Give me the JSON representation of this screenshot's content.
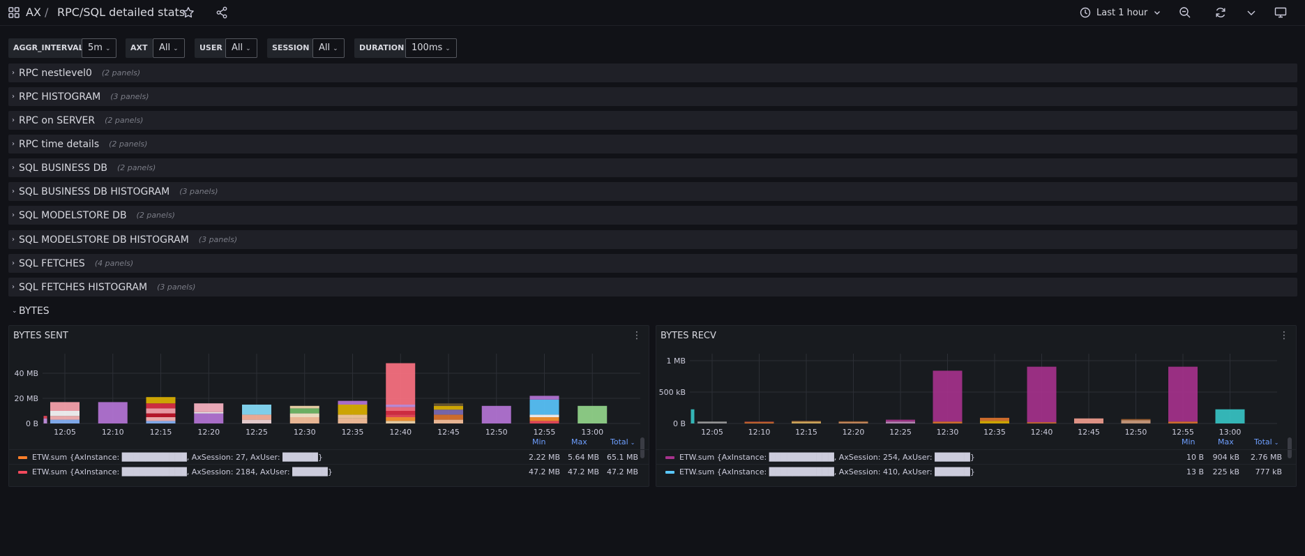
{
  "header": {
    "root": "AX",
    "separator": "/",
    "title": "RPC/SQL detailed stats",
    "time_range": "Last 1 hour"
  },
  "variables": [
    {
      "label": "AGGR_INTERVAL",
      "value": "5m"
    },
    {
      "label": "AXT",
      "value": "All"
    },
    {
      "label": "USER",
      "value": "All"
    },
    {
      "label": "SESSION",
      "value": "All"
    },
    {
      "label": "DURATION",
      "value": "100ms"
    }
  ],
  "rows": [
    {
      "title": "RPC nestlevel0",
      "count": "(2 panels)"
    },
    {
      "title": "RPC HISTOGRAM",
      "count": "(3 panels)"
    },
    {
      "title": "RPC on SERVER",
      "count": "(2 panels)"
    },
    {
      "title": "RPC time details",
      "count": "(2 panels)"
    },
    {
      "title": "SQL BUSINESS DB",
      "count": "(2 panels)"
    },
    {
      "title": "SQL BUSINESS DB HISTOGRAM",
      "count": "(3 panels)"
    },
    {
      "title": "SQL MODELSTORE DB",
      "count": "(2 panels)"
    },
    {
      "title": "SQL MODELSTORE DB HISTOGRAM",
      "count": "(3 panels)"
    },
    {
      "title": "SQL FETCHES",
      "count": "(4 panels)"
    },
    {
      "title": "SQL FETCHES HISTOGRAM",
      "count": "(3 panels)"
    }
  ],
  "open_row": {
    "title": "BYTES"
  },
  "legend_headers": {
    "min": "Min",
    "max": "Max",
    "total": "Total"
  },
  "colors": {
    "background": "#111217",
    "panel": "#181b1f",
    "row": "#1f2027",
    "accent_blue": "#6e9fff"
  },
  "panels": {
    "sent": {
      "title": "BYTES SENT",
      "legend": [
        {
          "color": "#ff7f2a",
          "name": "ETW.sum {AxInstance: ███████████, AxSession: 27, AxUser: ██████}",
          "min": "2.22 MB",
          "max": "5.64 MB",
          "total": "65.1 MB"
        },
        {
          "color": "#f2495c",
          "name": "ETW.sum {AxInstance: ███████████, AxSession: 2184, AxUser: ██████}",
          "min": "47.2 MB",
          "max": "47.2 MB",
          "total": "47.2 MB"
        }
      ]
    },
    "recv": {
      "title": "BYTES RECV",
      "legend": [
        {
          "color": "#a7328d",
          "name": "ETW.sum {AxInstance: ███████████, AxSession: 254, AxUser: ██████}",
          "min": "10 B",
          "max": "904 kB",
          "total": "2.76 MB"
        },
        {
          "color": "#5ac8ff",
          "name": "ETW.sum {AxInstance: ███████████, AxSession: 410, AxUser: ██████}",
          "min": "13 B",
          "max": "225 kB",
          "total": "777 kB"
        }
      ]
    }
  },
  "chart_data": [
    {
      "type": "bar",
      "title": "BYTES SENT",
      "y_ticks": [
        "0 B",
        "20 MB",
        "40 MB"
      ],
      "ylim": [
        0,
        50
      ],
      "x_ticks": [
        "12:05",
        "12:10",
        "12:15",
        "12:20",
        "12:25",
        "12:30",
        "12:35",
        "12:40",
        "12:45",
        "12:50",
        "12:55",
        "13:00"
      ],
      "grid": true,
      "stacks": [
        {
          "t": "12:01",
          "segments": [
            {
              "v": 4,
              "color": "#ca95e5"
            },
            {
              "v": 2,
              "color": "#f2495c"
            }
          ]
        },
        {
          "t": "12:05",
          "segments": [
            {
              "v": 3,
              "color": "#8ab8ff"
            },
            {
              "v": 3,
              "color": "#ffb8b8"
            },
            {
              "v": 4,
              "color": "#ffffff"
            },
            {
              "v": 7,
              "color": "#ffa6b0"
            }
          ]
        },
        {
          "t": "12:10",
          "segments": [
            {
              "v": 17,
              "color": "#b877d9"
            }
          ]
        },
        {
          "t": "12:15",
          "segments": [
            {
              "v": 2,
              "color": "#8ab8ff"
            },
            {
              "v": 3,
              "color": "#ffb8b8"
            },
            {
              "v": 3,
              "color": "#c4162a"
            },
            {
              "v": 4,
              "color": "#ffa6b0"
            },
            {
              "v": 4,
              "color": "#e02f44"
            },
            {
              "v": 5,
              "color": "#e0b400"
            }
          ]
        },
        {
          "t": "12:20",
          "segments": [
            {
              "v": 8,
              "color": "#b877d9"
            },
            {
              "v": 1,
              "color": "#ffffff"
            },
            {
              "v": 7,
              "color": "#ffb8c6"
            }
          ]
        },
        {
          "t": "12:25",
          "segments": [
            {
              "v": 3,
              "color": "#fadede"
            },
            {
              "v": 4,
              "color": "#ffb8a0"
            },
            {
              "v": 8,
              "color": "#8ae2ff"
            }
          ]
        },
        {
          "t": "12:30",
          "segments": [
            {
              "v": 5,
              "color": "#ffc6a0"
            },
            {
              "v": 3,
              "color": "#fff0d0"
            },
            {
              "v": 4,
              "color": "#73bf69"
            },
            {
              "v": 2,
              "color": "#fadeb0"
            }
          ]
        },
        {
          "t": "12:35",
          "segments": [
            {
              "v": 4,
              "color": "#ffc6a0"
            },
            {
              "v": 3,
              "color": "#ffd0a0"
            },
            {
              "v": 8,
              "color": "#e0b400"
            },
            {
              "v": 3,
              "color": "#b877d9"
            }
          ]
        },
        {
          "t": "12:40",
          "segments": [
            {
              "v": 2,
              "color": "#fadeb0"
            },
            {
              "v": 3,
              "color": "#ff9830"
            },
            {
              "v": 2,
              "color": "#f2495c"
            },
            {
              "v": 3,
              "color": "#e02f44"
            },
            {
              "v": 3,
              "color": "#ff7383"
            },
            {
              "v": 2,
              "color": "#ca95e5"
            },
            {
              "v": 33,
              "color": "#ff7383"
            }
          ]
        },
        {
          "t": "12:45",
          "segments": [
            {
              "v": 3,
              "color": "#ffc6a0"
            },
            {
              "v": 4,
              "color": "#e0752d"
            },
            {
              "v": 4,
              "color": "#806eb7"
            },
            {
              "v": 3,
              "color": "#e0b400"
            },
            {
              "v": 2,
              "color": "#6e5a30"
            }
          ]
        },
        {
          "t": "12:50",
          "segments": [
            {
              "v": 14,
              "color": "#b877d9"
            }
          ]
        },
        {
          "t": "12:55",
          "segments": [
            {
              "v": 2,
              "color": "#f2495c"
            },
            {
              "v": 3,
              "color": "#ff9830"
            },
            {
              "v": 2,
              "color": "#ffffff"
            },
            {
              "v": 12,
              "color": "#5ac8ff"
            },
            {
              "v": 3,
              "color": "#b877d9"
            }
          ]
        },
        {
          "t": "13:00",
          "segments": [
            {
              "v": 14,
              "color": "#96d98d"
            }
          ]
        }
      ]
    },
    {
      "type": "bar",
      "title": "BYTES RECV",
      "y_ticks": [
        "0 B",
        "500 kB",
        "1 MB"
      ],
      "ylim": [
        0,
        1000
      ],
      "x_ticks": [
        "12:05",
        "12:10",
        "12:15",
        "12:20",
        "12:25",
        "12:30",
        "12:35",
        "12:40",
        "12:45",
        "12:50",
        "12:55",
        "13:00"
      ],
      "grid": true,
      "stacks": [
        {
          "t": "12:01",
          "segments": [
            {
              "v": 225,
              "color": "#37c6c6"
            }
          ]
        },
        {
          "t": "12:05",
          "segments": [
            {
              "v": 30,
              "color": "#a0a0a0"
            }
          ]
        },
        {
          "t": "12:10",
          "segments": [
            {
              "v": 20,
              "color": "#e0752d"
            },
            {
              "v": 10,
              "color": "#b04040"
            }
          ]
        },
        {
          "t": "12:15",
          "segments": [
            {
              "v": 30,
              "color": "#e0b460"
            },
            {
              "v": 10,
              "color": "#a06030"
            }
          ]
        },
        {
          "t": "12:20",
          "segments": [
            {
              "v": 25,
              "color": "#d09060"
            },
            {
              "v": 10,
              "color": "#a06030"
            }
          ]
        },
        {
          "t": "12:25",
          "segments": [
            {
              "v": 30,
              "color": "#c090c0"
            },
            {
              "v": 30,
              "color": "#a7328d"
            }
          ]
        },
        {
          "t": "12:30",
          "segments": [
            {
              "v": 30,
              "color": "#e0752d"
            },
            {
              "v": 810,
              "color": "#a7328d"
            }
          ]
        },
        {
          "t": "12:35",
          "segments": [
            {
              "v": 40,
              "color": "#e0b400"
            },
            {
              "v": 50,
              "color": "#e0752d"
            }
          ]
        },
        {
          "t": "12:40",
          "segments": [
            {
              "v": 20,
              "color": "#e0752d"
            },
            {
              "v": 884,
              "color": "#a7328d"
            }
          ]
        },
        {
          "t": "12:45",
          "segments": [
            {
              "v": 80,
              "color": "#f4a090"
            }
          ]
        },
        {
          "t": "12:50",
          "segments": [
            {
              "v": 50,
              "color": "#d0a080"
            },
            {
              "v": 20,
              "color": "#a06030"
            }
          ]
        },
        {
          "t": "12:55",
          "segments": [
            {
              "v": 30,
              "color": "#e0752d"
            },
            {
              "v": 874,
              "color": "#a7328d"
            }
          ]
        },
        {
          "t": "13:00",
          "segments": [
            {
              "v": 225,
              "color": "#37c6c6"
            }
          ]
        }
      ]
    }
  ]
}
